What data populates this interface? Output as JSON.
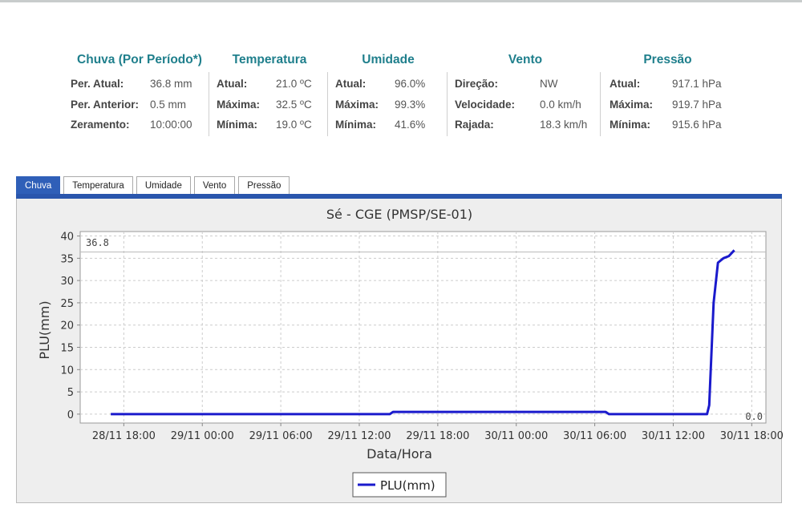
{
  "stats": {
    "chuva": {
      "title": "Chuva (Por Período*)",
      "rows": [
        {
          "label": "Per. Atual:",
          "value": "36.8 mm"
        },
        {
          "label": "Per. Anterior:",
          "value": "0.5 mm"
        },
        {
          "label": "Zeramento:",
          "value": "10:00:00"
        }
      ]
    },
    "temperatura": {
      "title": "Temperatura",
      "rows": [
        {
          "label": "Atual:",
          "value": "21.0 ºC"
        },
        {
          "label": "Máxima:",
          "value": "32.5 ºC"
        },
        {
          "label": "Mínima:",
          "value": "19.0 ºC"
        }
      ]
    },
    "umidade": {
      "title": "Umidade",
      "rows": [
        {
          "label": "Atual:",
          "value": "96.0%"
        },
        {
          "label": "Máxima:",
          "value": "99.3%"
        },
        {
          "label": "Mínima:",
          "value": "41.6%"
        }
      ]
    },
    "vento": {
      "title": "Vento",
      "rows": [
        {
          "label": "Direção:",
          "value": "NW"
        },
        {
          "label": "Velocidade:",
          "value": "0.0 km/h"
        },
        {
          "label": "Rajada:",
          "value": "18.3 km/h"
        }
      ]
    },
    "pressao": {
      "title": "Pressão",
      "rows": [
        {
          "label": "Atual:",
          "value": "917.1 hPa"
        },
        {
          "label": "Máxima:",
          "value": "919.7 hPa"
        },
        {
          "label": "Mínima:",
          "value": "915.6 hPa"
        }
      ]
    }
  },
  "tabs": [
    {
      "label": "Chuva",
      "active": true
    },
    {
      "label": "Temperatura"
    },
    {
      "label": "Umidade"
    },
    {
      "label": "Vento"
    },
    {
      "label": "Pressão"
    }
  ],
  "colors": {
    "accent": "#2a56ad",
    "heading": "#1f7f8c",
    "series": "#1a1acc"
  },
  "chart_data": {
    "type": "line",
    "title": "Sé - CGE (PMSP/SE-01)",
    "xlabel": "Data/Hora",
    "ylabel": "PLU(mm)",
    "ylim": [
      -2,
      41
    ],
    "yticks": [
      0,
      5,
      10,
      15,
      20,
      25,
      30,
      35,
      40
    ],
    "xticks": [
      "28/11 18:00",
      "29/11 00:00",
      "29/11 06:00",
      "29/11 12:00",
      "29/11 18:00",
      "30/11 00:00",
      "30/11 06:00",
      "30/11 12:00",
      "30/11 18:00"
    ],
    "xlim": [
      "28/11 14:40",
      "30/11 19:05"
    ],
    "grid": true,
    "legend": "bottom",
    "annotations": {
      "max": "36.8",
      "min": "0.0"
    },
    "series": [
      {
        "name": "PLU(mm)",
        "points": [
          [
            "28/11 17:00",
            0
          ],
          [
            "29/11 14:20",
            0
          ],
          [
            "29/11 14:35",
            0.5
          ],
          [
            "30/11 06:50",
            0.5
          ],
          [
            "30/11 07:05",
            0
          ],
          [
            "30/11 14:35",
            0
          ],
          [
            "30/11 14:45",
            2
          ],
          [
            "30/11 15:05",
            25
          ],
          [
            "30/11 15:25",
            34
          ],
          [
            "30/11 15:50",
            35
          ],
          [
            "30/11 16:15",
            35.5
          ],
          [
            "30/11 16:40",
            36.8
          ]
        ]
      }
    ]
  }
}
